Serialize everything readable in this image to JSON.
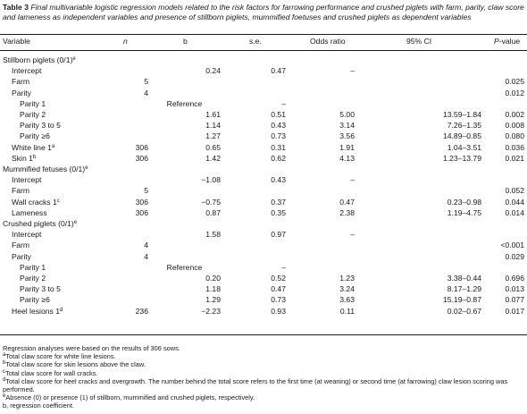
{
  "caption": {
    "label": "Table 3",
    "text": "Final multivariable logistic regression models related to the risk factors for farrowing performance and crushed piglets with farm, parity, claw score and lameness as independent variables and presence of stillborn piglets, mummified foetuses and crushed piglets as dependent variables"
  },
  "headers": {
    "variable": "Variable",
    "n": "n",
    "b": "b",
    "se": "s.e.",
    "or": "Odds ratio",
    "ci": "95% CI",
    "p": "P-value"
  },
  "rows": [
    {
      "kind": "group",
      "variable": "Stillborn piglets (0/1)",
      "sup": "e"
    },
    {
      "kind": "row",
      "indent": 1,
      "variable": "Intercept",
      "n": "",
      "b": "0.24",
      "se": "0.47",
      "or": "–",
      "ci": "",
      "p": ""
    },
    {
      "kind": "row",
      "indent": 1,
      "variable": "Farm",
      "n": "5",
      "b": "",
      "se": "",
      "or": "",
      "ci": "",
      "p": "0.025"
    },
    {
      "kind": "row",
      "indent": 1,
      "variable": "Parity",
      "n": "4",
      "b": "",
      "se": "",
      "or": "",
      "ci": "",
      "p": "0.012"
    },
    {
      "kind": "ref",
      "indent": 2,
      "variable": "Parity 1",
      "b": "Reference",
      "se": "–"
    },
    {
      "kind": "row",
      "indent": 2,
      "variable": "Parity 2",
      "n": "",
      "b": "1.61",
      "se": "0.51",
      "or": "5.00",
      "ci": "13.59–1.84",
      "p": "0.002"
    },
    {
      "kind": "row",
      "indent": 2,
      "variable": "Parity 3 to 5",
      "n": "",
      "b": "1.14",
      "se": "0.43",
      "or": "3.14",
      "ci": "7.26–1.35",
      "p": "0.008"
    },
    {
      "kind": "row",
      "indent": 2,
      "variable": "Parity ≥6",
      "n": "",
      "b": "1.27",
      "se": "0.73",
      "or": "3.56",
      "ci": "14.89–0.85",
      "p": "0.080"
    },
    {
      "kind": "row",
      "indent": 1,
      "variable": "White line 1",
      "sup": "a",
      "n": "306",
      "b": "0.65",
      "se": "0.31",
      "or": "1.91",
      "ci": "1.04–3.51",
      "p": "0.036"
    },
    {
      "kind": "row",
      "indent": 1,
      "variable": "Skin 1",
      "sup": "b",
      "n": "306",
      "b": "1.42",
      "se": "0.62",
      "or": "4.13",
      "ci": "1.23–13.79",
      "p": "0.021"
    },
    {
      "kind": "group",
      "variable": "Mummified fetuses (0/1)",
      "sup": "e"
    },
    {
      "kind": "row",
      "indent": 1,
      "variable": "Intercept",
      "n": "",
      "b": "−1.08",
      "se": "0.43",
      "or": "–",
      "ci": "",
      "p": ""
    },
    {
      "kind": "row",
      "indent": 1,
      "variable": "Farm",
      "n": "5",
      "b": "",
      "se": "",
      "or": "",
      "ci": "",
      "p": "0.052"
    },
    {
      "kind": "row",
      "indent": 1,
      "variable": "Wall cracks 1",
      "sup": "c",
      "n": "306",
      "b": "−0.75",
      "se": "0.37",
      "or": "0.47",
      "ci": "0.23–0.98",
      "p": "0.044"
    },
    {
      "kind": "row",
      "indent": 1,
      "variable": "Lameness",
      "n": "306",
      "b": "0.87",
      "se": "0.35",
      "or": "2.38",
      "ci": "1.19–4.75",
      "p": "0.014"
    },
    {
      "kind": "group",
      "variable": "Crushed piglets (0/1)",
      "sup": "e"
    },
    {
      "kind": "row",
      "indent": 1,
      "variable": "Intercept",
      "n": "",
      "b": "1.58",
      "se": "0.97",
      "or": "–",
      "ci": "",
      "p": ""
    },
    {
      "kind": "row",
      "indent": 1,
      "variable": "Farm",
      "n": "4",
      "b": "",
      "se": "",
      "or": "",
      "ci": "",
      "p": "<0.001"
    },
    {
      "kind": "row",
      "indent": 1,
      "variable": "Parity",
      "n": "4",
      "b": "",
      "se": "",
      "or": "",
      "ci": "",
      "p": "0.029"
    },
    {
      "kind": "ref",
      "indent": 2,
      "variable": "Parity 1",
      "b": "Reference",
      "se": "–"
    },
    {
      "kind": "row",
      "indent": 2,
      "variable": "Parity 2",
      "n": "",
      "b": "0.20",
      "se": "0.52",
      "or": "1.23",
      "ci": "3.38–0.44",
      "p": "0.696"
    },
    {
      "kind": "row",
      "indent": 2,
      "variable": "Parity 3 to 5",
      "n": "",
      "b": "1.18",
      "se": "0.47",
      "or": "3.24",
      "ci": "8.17–1.29",
      "p": "0.013"
    },
    {
      "kind": "row",
      "indent": 2,
      "variable": "Parity ≥6",
      "n": "",
      "b": "1.29",
      "se": "0.73",
      "or": "3.63",
      "ci": "15.19–0.87",
      "p": "0.077"
    },
    {
      "kind": "row",
      "indent": 1,
      "variable": "Heel lesions 1",
      "sup": "d",
      "n": "236",
      "b": "−2.23",
      "se": "0.93",
      "or": "0.11",
      "ci": "0.02–0.67",
      "p": "0.017"
    }
  ],
  "notes": [
    {
      "sup": "",
      "text": "Regression analyses were based on the results of 306 sows."
    },
    {
      "sup": "a",
      "text": "Total claw score for white line lesions."
    },
    {
      "sup": "b",
      "text": "Total claw score for skin lesions above the claw."
    },
    {
      "sup": "c",
      "text": "Total claw score for wall cracks."
    },
    {
      "sup": "d",
      "text": "Total claw score for heel cracks and overgrowth. The number behind the total score refers to the first time (at weaning) or second time (at farrowing) claw lesion scoring was performed."
    },
    {
      "sup": "e",
      "text": "Absence (0) or presence (1) of stillborn, mummified and crushed piglets, respectively."
    },
    {
      "sup": "",
      "text": "b, regression coefficient."
    }
  ]
}
